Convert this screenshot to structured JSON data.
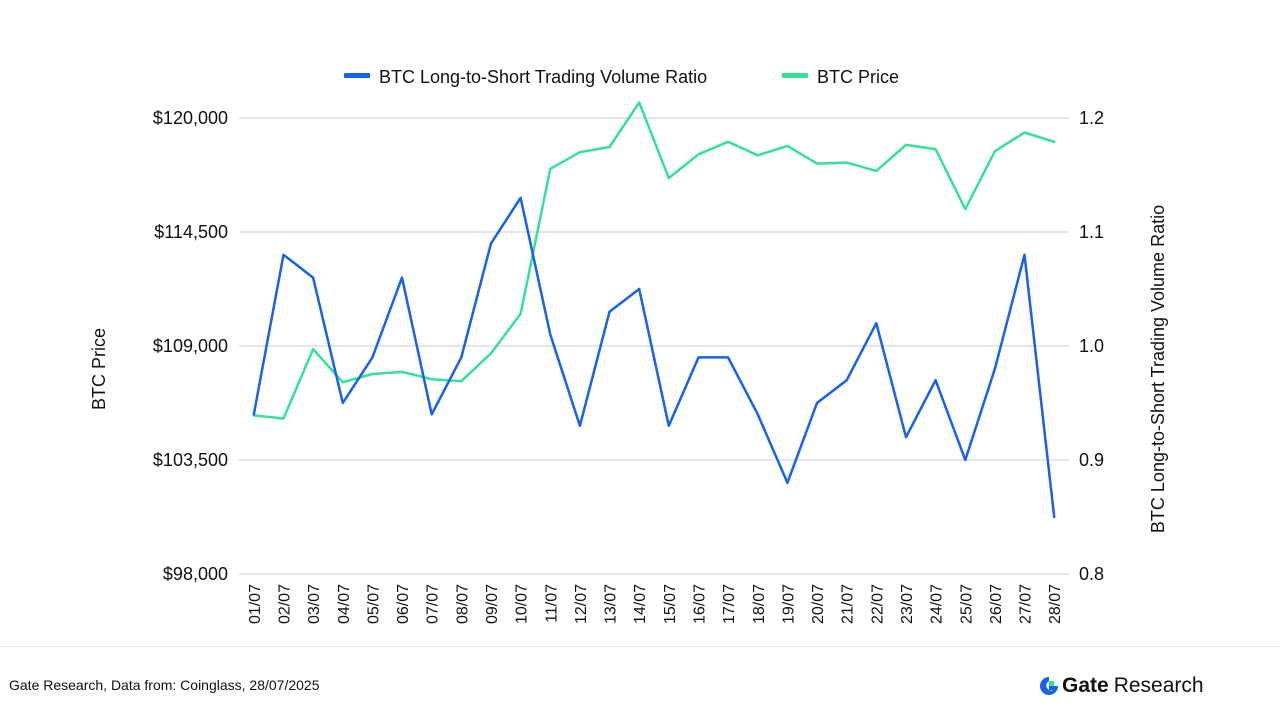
{
  "chart_data": {
    "type": "line",
    "title": "",
    "categories": [
      "01/07",
      "02/07",
      "03/07",
      "04/07",
      "05/07",
      "06/07",
      "07/07",
      "08/07",
      "09/07",
      "10/07",
      "11/07",
      "12/07",
      "13/07",
      "14/07",
      "15/07",
      "16/07",
      "17/07",
      "18/07",
      "19/07",
      "20/07",
      "21/07",
      "22/07",
      "23/07",
      "24/07",
      "25/07",
      "26/07",
      "27/07",
      "28/07"
    ],
    "xlabel": "",
    "ylabel": "BTC Price",
    "y2label": "BTC Long-to-Short Trading Volume Ratio",
    "ylim": [
      98000,
      120000
    ],
    "y2lim": [
      0.8,
      1.2
    ],
    "y_ticks": [
      "$98,000",
      "$103,500",
      "$109,000",
      "$114,500",
      "$120,000"
    ],
    "y2_ticks": [
      "0.8",
      "0.9",
      "1.0",
      "1.1",
      "1.2"
    ],
    "grid": true,
    "legend": "top-center",
    "series": [
      {
        "name": "BTC Long-to-Short Trading Volume Ratio",
        "axis": "right",
        "color": "#1662e8",
        "values": [
          0.94,
          1.08,
          1.06,
          0.95,
          0.99,
          1.06,
          0.94,
          0.99,
          1.09,
          1.13,
          1.01,
          0.93,
          1.03,
          1.05,
          0.93,
          0.99,
          0.99,
          0.94,
          0.88,
          0.95,
          0.97,
          1.02,
          0.92,
          0.97,
          0.9,
          0.98,
          1.08,
          0.85
        ]
      },
      {
        "name": "BTC Price",
        "axis": "left",
        "color": "#35e09a",
        "values": [
          105650,
          105500,
          108850,
          107250,
          107650,
          107750,
          107400,
          107300,
          108650,
          110550,
          117550,
          118350,
          118600,
          120750,
          117100,
          118250,
          118850,
          118200,
          118650,
          117800,
          117850,
          117450,
          118700,
          118500,
          115600,
          118400,
          119300,
          118850
        ]
      }
    ]
  },
  "footer": {
    "source": "Gate Research, Data from: Coinglass, 28/07/2025",
    "logo_gate": "Gate",
    "logo_research": "Research",
    "logo_icon": "gate-logo-icon"
  }
}
